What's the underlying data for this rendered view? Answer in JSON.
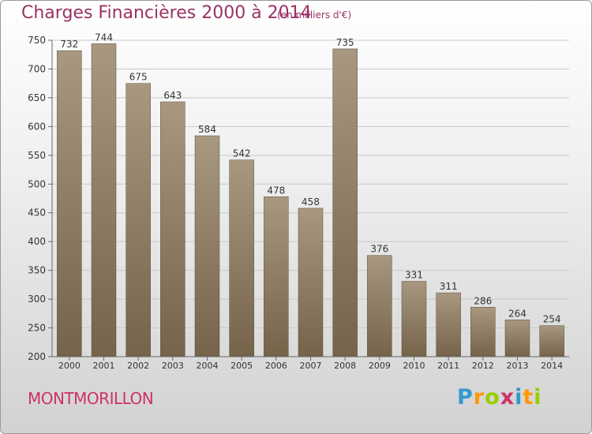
{
  "chart_data": {
    "type": "bar",
    "title": "Charges Financières 2000 à 2014",
    "subtitle": "(en milliers d'€)",
    "categories": [
      "2000",
      "2001",
      "2002",
      "2003",
      "2004",
      "2005",
      "2006",
      "2007",
      "2008",
      "2009",
      "2010",
      "2011",
      "2012",
      "2013",
      "2014"
    ],
    "values": [
      732,
      744,
      675,
      643,
      584,
      542,
      478,
      458,
      735,
      376,
      331,
      311,
      286,
      264,
      254
    ],
    "ylim": [
      200,
      750
    ],
    "yticks": [
      200,
      250,
      300,
      350,
      400,
      450,
      500,
      550,
      600,
      650,
      700,
      750
    ],
    "grid": true,
    "bar_colors": [
      "#a89880",
      "#75634a"
    ]
  },
  "footer": {
    "city": "MONTMORILLON",
    "logo_letters": [
      {
        "char": "P",
        "color": "#3399cc"
      },
      {
        "char": "r",
        "color": "#ff9900"
      },
      {
        "char": "o",
        "color": "#99cc00"
      },
      {
        "char": "x",
        "color": "#cc3366"
      },
      {
        "char": "i",
        "color": "#3399cc"
      },
      {
        "char": "t",
        "color": "#ff9900"
      },
      {
        "char": "i",
        "color": "#99cc00"
      }
    ]
  }
}
